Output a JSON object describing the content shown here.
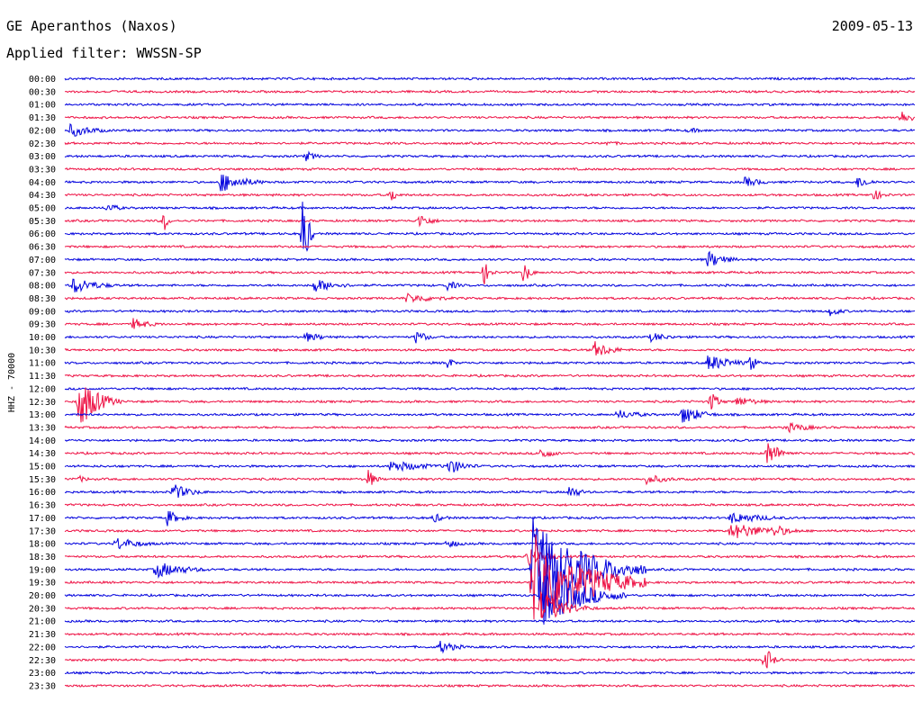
{
  "header": {
    "title": "GE Aperanthos (Naxos)",
    "date": "2009-05-13",
    "filter": "Applied filter: WWSSN-SP"
  },
  "colors": {
    "even_trace": "#0000dd",
    "odd_trace": "#ee1144"
  },
  "chart_data": {
    "type": "line",
    "ylabel": "HHZ - 70000",
    "rows": [
      "00:00",
      "00:30",
      "01:00",
      "01:30",
      "02:00",
      "02:30",
      "03:00",
      "03:30",
      "04:00",
      "04:30",
      "05:00",
      "05:30",
      "06:00",
      "06:30",
      "07:00",
      "07:30",
      "08:00",
      "08:30",
      "09:00",
      "09:30",
      "10:00",
      "10:30",
      "11:00",
      "11:30",
      "12:00",
      "12:30",
      "13:00",
      "13:30",
      "14:00",
      "14:30",
      "15:00",
      "15:30",
      "16:00",
      "16:30",
      "17:00",
      "17:30",
      "18:00",
      "18:30",
      "19:00",
      "19:30",
      "20:00",
      "20:30",
      "21:00",
      "21:30",
      "22:00",
      "22:30",
      "23:00",
      "23:30"
    ],
    "events": [
      {
        "row": 1,
        "minute": 1.5,
        "amp": 2,
        "dur": 2
      },
      {
        "row": 3,
        "minute": 29.5,
        "amp": 9,
        "dur": 1
      },
      {
        "row": 4,
        "minute": 0.2,
        "amp": 8,
        "dur": 2
      },
      {
        "row": 4,
        "minute": 22,
        "amp": 3,
        "dur": 2
      },
      {
        "row": 5,
        "minute": 19,
        "amp": 3,
        "dur": 2
      },
      {
        "row": 6,
        "minute": 8.5,
        "amp": 6,
        "dur": 1
      },
      {
        "row": 8,
        "minute": 5.5,
        "amp": 12,
        "dur": 2
      },
      {
        "row": 8,
        "minute": 24,
        "amp": 6,
        "dur": 1.5
      },
      {
        "row": 8,
        "minute": 28,
        "amp": 8,
        "dur": 1
      },
      {
        "row": 9,
        "minute": 11.5,
        "amp": 10,
        "dur": 0.5
      },
      {
        "row": 9,
        "minute": 28.5,
        "amp": 7,
        "dur": 1
      },
      {
        "row": 10,
        "minute": 1.5,
        "amp": 6,
        "dur": 1
      },
      {
        "row": 11,
        "minute": 3.5,
        "amp": 14,
        "dur": 0.3
      },
      {
        "row": 11,
        "minute": 12.5,
        "amp": 9,
        "dur": 1
      },
      {
        "row": 12,
        "minute": 8.4,
        "amp": 55,
        "dur": 0.4
      },
      {
        "row": 14,
        "minute": 22.7,
        "amp": 10,
        "dur": 1.5
      },
      {
        "row": 15,
        "minute": 14.8,
        "amp": 14,
        "dur": 0.5
      },
      {
        "row": 15,
        "minute": 16.2,
        "amp": 14,
        "dur": 0.5
      },
      {
        "row": 16,
        "minute": 0.3,
        "amp": 10,
        "dur": 2
      },
      {
        "row": 16,
        "minute": 8.8,
        "amp": 8,
        "dur": 2
      },
      {
        "row": 16,
        "minute": 13.5,
        "amp": 6,
        "dur": 1
      },
      {
        "row": 17,
        "minute": 12,
        "amp": 6,
        "dur": 3
      },
      {
        "row": 18,
        "minute": 27,
        "amp": 6,
        "dur": 1
      },
      {
        "row": 19,
        "minute": 2.4,
        "amp": 7,
        "dur": 1.5
      },
      {
        "row": 20,
        "minute": 8.5,
        "amp": 6,
        "dur": 1.5
      },
      {
        "row": 20,
        "minute": 12.4,
        "amp": 8,
        "dur": 1
      },
      {
        "row": 20,
        "minute": 20.7,
        "amp": 6,
        "dur": 1.5
      },
      {
        "row": 21,
        "minute": 18.7,
        "amp": 10,
        "dur": 1.5
      },
      {
        "row": 22,
        "minute": 13.5,
        "amp": 10,
        "dur": 0.4
      },
      {
        "row": 22,
        "minute": 22.7,
        "amp": 10,
        "dur": 2
      },
      {
        "row": 22,
        "minute": 24.2,
        "amp": 12,
        "dur": 0.5
      },
      {
        "row": 25,
        "minute": 0.5,
        "amp": 32,
        "dur": 1.5
      },
      {
        "row": 25,
        "minute": 22.8,
        "amp": 14,
        "dur": 0.6
      },
      {
        "row": 25,
        "minute": 23.7,
        "amp": 6,
        "dur": 2
      },
      {
        "row": 26,
        "minute": 19.5,
        "amp": 6,
        "dur": 2
      },
      {
        "row": 26,
        "minute": 21.8,
        "amp": 12,
        "dur": 1.5
      },
      {
        "row": 27,
        "minute": 25.5,
        "amp": 6,
        "dur": 2
      },
      {
        "row": 29,
        "minute": 16.8,
        "amp": 8,
        "dur": 1
      },
      {
        "row": 29,
        "minute": 24.8,
        "amp": 16,
        "dur": 1
      },
      {
        "row": 30,
        "minute": 11.5,
        "amp": 7,
        "dur": 3
      },
      {
        "row": 30,
        "minute": 13.5,
        "amp": 10,
        "dur": 1.5
      },
      {
        "row": 31,
        "minute": 0.5,
        "amp": 4,
        "dur": 1
      },
      {
        "row": 31,
        "minute": 10.7,
        "amp": 12,
        "dur": 0.6
      },
      {
        "row": 31,
        "minute": 20.5,
        "amp": 6,
        "dur": 2
      },
      {
        "row": 32,
        "minute": 3.8,
        "amp": 10,
        "dur": 1.5
      },
      {
        "row": 32,
        "minute": 17.8,
        "amp": 8,
        "dur": 1
      },
      {
        "row": 34,
        "minute": 3.6,
        "amp": 10,
        "dur": 1
      },
      {
        "row": 34,
        "minute": 13,
        "amp": 6,
        "dur": 1
      },
      {
        "row": 34,
        "minute": 23.5,
        "amp": 7,
        "dur": 3
      },
      {
        "row": 35,
        "minute": 23.5,
        "amp": 10,
        "dur": 3
      },
      {
        "row": 35,
        "minute": 25,
        "amp": 8,
        "dur": 1.5
      },
      {
        "row": 36,
        "minute": 1.8,
        "amp": 8,
        "dur": 2
      },
      {
        "row": 36,
        "minute": 13.5,
        "amp": 6,
        "dur": 1
      },
      {
        "row": 37,
        "minute": 16.3,
        "amp": 14,
        "dur": 1.5
      },
      {
        "row": 38,
        "minute": 3.2,
        "amp": 10,
        "dur": 2.5
      },
      {
        "row": 38,
        "minute": 16.5,
        "amp": 60,
        "dur": 4
      },
      {
        "row": 39,
        "minute": 16.5,
        "amp": 60,
        "dur": 4
      },
      {
        "row": 40,
        "minute": 16.8,
        "amp": 40,
        "dur": 3
      },
      {
        "row": 41,
        "minute": 16.8,
        "amp": 20,
        "dur": 2
      },
      {
        "row": 44,
        "minute": 13.2,
        "amp": 8,
        "dur": 1.5
      },
      {
        "row": 45,
        "minute": 24.7,
        "amp": 18,
        "dur": 0.6
      }
    ]
  }
}
